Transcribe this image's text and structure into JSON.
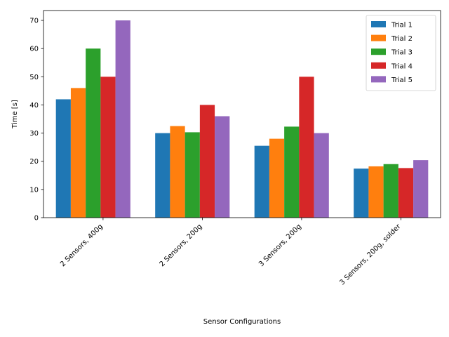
{
  "chart_data": {
    "type": "bar",
    "title": "",
    "xlabel": "Sensor Configurations",
    "ylabel": "Time [s]",
    "categories": [
      "2 Sensors, 400g",
      "2 Sensors, 200g",
      "3 Sensors, 200g",
      "3 Sensors, 200g, solder"
    ],
    "series": [
      {
        "name": "Trial 1",
        "color": "#1f77b4",
        "values": [
          42,
          30,
          25.5,
          17.4
        ]
      },
      {
        "name": "Trial 2",
        "color": "#ff7f0e",
        "values": [
          46,
          32.5,
          28,
          18.2
        ]
      },
      {
        "name": "Trial 3",
        "color": "#2ca02c",
        "values": [
          60,
          30.3,
          32.3,
          19
        ]
      },
      {
        "name": "Trial 4",
        "color": "#d62728",
        "values": [
          50,
          40,
          50,
          17.6
        ]
      },
      {
        "name": "Trial 5",
        "color": "#9467bd",
        "values": [
          70,
          36,
          30,
          20.4
        ]
      }
    ],
    "yticks": [
      0,
      10,
      20,
      30,
      40,
      50,
      60,
      70
    ],
    "ylim": [
      0,
      73.5
    ],
    "grid": false,
    "legend_position": "top-right"
  }
}
